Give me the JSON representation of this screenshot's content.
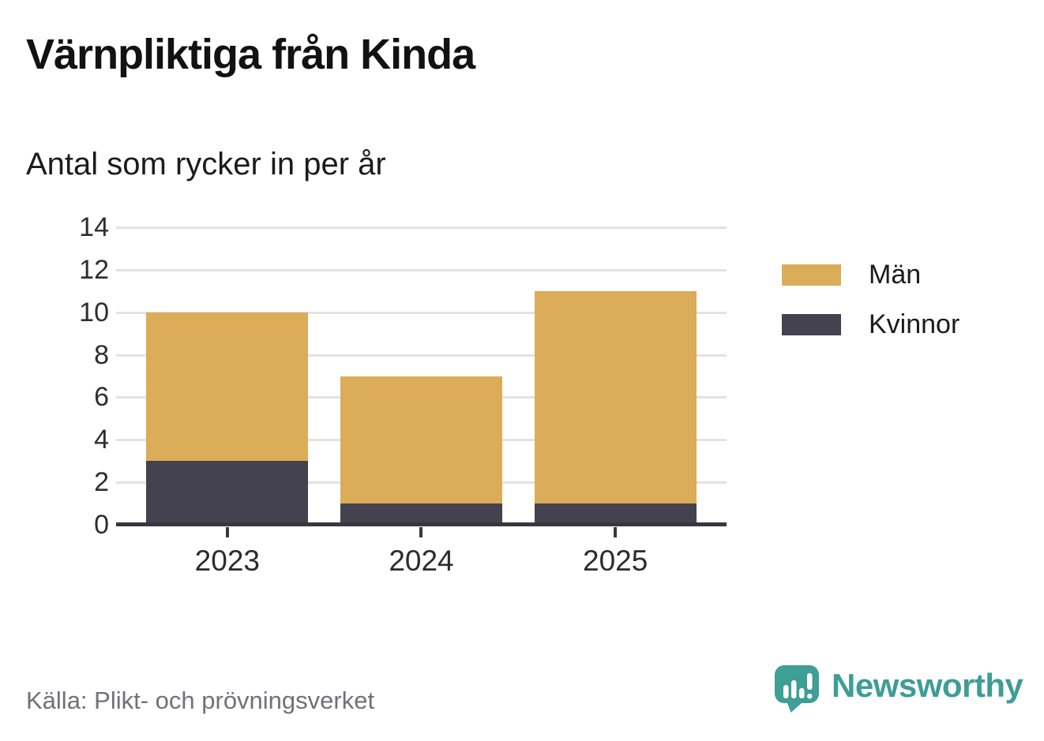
{
  "title": "Värnpliktiga från Kinda",
  "subtitle": "Antal som rycker in per år",
  "source": "Källa: Plikt- och prövningsverket",
  "branding": {
    "name": "Newsworthy",
    "color": "#3e9d95"
  },
  "colors": {
    "men": "#dbad58",
    "women": "#45424f",
    "axis": "#38373f",
    "grid": "#e2e2e4",
    "tick_label": "#2d2d33",
    "source_text": "#70707a"
  },
  "legend": [
    {
      "label": "Män",
      "color": "#dbad58"
    },
    {
      "label": "Kvinnor",
      "color": "#45424f"
    }
  ],
  "chart_data": {
    "type": "bar",
    "stacked": true,
    "categories": [
      "2023",
      "2024",
      "2025"
    ],
    "series": [
      {
        "name": "Män",
        "color": "#dbad58",
        "values": [
          7,
          6,
          10
        ]
      },
      {
        "name": "Kvinnor",
        "color": "#45424f",
        "values": [
          3,
          1,
          1
        ]
      }
    ],
    "totals": [
      10,
      7,
      11
    ],
    "stack_order_bottom_to_top": [
      "Kvinnor",
      "Män"
    ],
    "title": "Värnpliktiga från Kinda",
    "subtitle": "Antal som rycker in per år",
    "xlabel": "",
    "ylabel": "",
    "ylim": [
      0,
      14
    ],
    "yticks": [
      0,
      2,
      4,
      6,
      8,
      10,
      12,
      14
    ],
    "grid": true,
    "legend_position": "right"
  }
}
